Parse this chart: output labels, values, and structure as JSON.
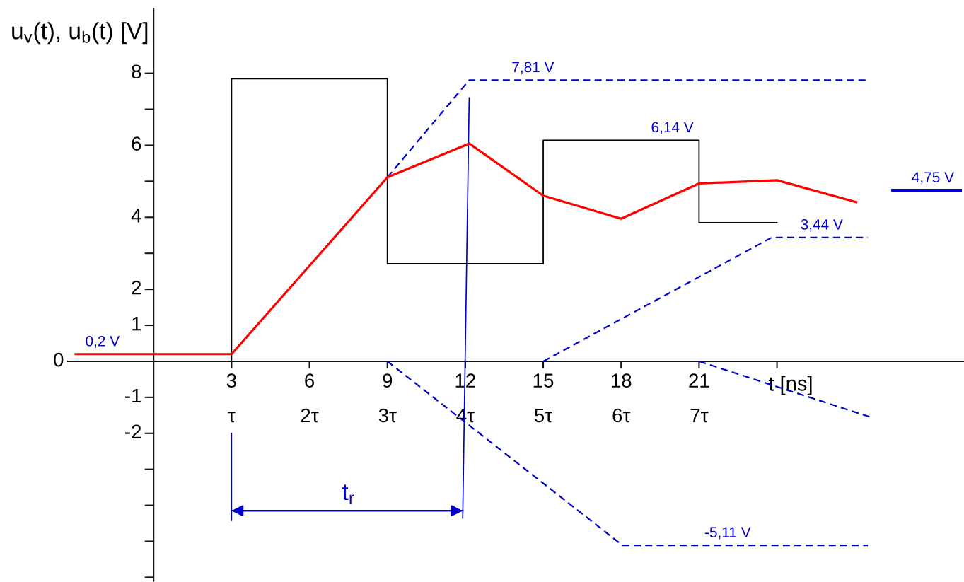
{
  "chart_data": {
    "type": "line",
    "ylabel": "u$_{v}$(t), u$_{b}$(t) [V]",
    "xlabel": "t [ns]",
    "xlim": [
      -3.3,
      31.2
    ],
    "ylim": [
      -6.1,
      9.8
    ],
    "xticks": [
      3,
      6,
      9,
      12,
      15,
      18,
      21,
      {
        "value": 24,
        "label": null
      }
    ],
    "x2lim": [
      -1.1,
      10.4
    ],
    "x2ticks": [
      {
        "value": 1,
        "label": "τ"
      },
      {
        "value": 2,
        "label": "2τ"
      },
      {
        "value": 3,
        "label": "3τ"
      },
      {
        "value": 4,
        "label": "4τ"
      },
      {
        "value": 5,
        "label": "5τ"
      },
      {
        "value": 6,
        "label": "6τ"
      },
      {
        "value": 7,
        "label": "7τ"
      }
    ],
    "yticks": [
      {
        "value": -6,
        "label": null
      },
      {
        "value": -5,
        "label": null
      },
      {
        "value": -4,
        "label": null
      },
      {
        "value": -3,
        "label": null
      },
      -2,
      -1,
      1,
      2,
      {
        "value": 3,
        "label": null
      },
      4,
      {
        "value": 5,
        "label": null
      },
      6,
      {
        "value": 7,
        "label": null
      },
      8
    ],
    "line_style": "solid",
    "series": [
      {
        "color": "#ff0000",
        "x": [
          -3,
          3,
          9,
          12.15,
          15,
          18,
          21,
          24,
          27.05
        ],
        "values": [
          0.2,
          0.2,
          5.11,
          6.05,
          4.6,
          3.96,
          4.94,
          5.03,
          4.42
        ]
      },
      {
        "color": "#000000",
        "x": [
          3,
          3,
          9,
          9,
          15,
          15,
          21,
          21,
          24
        ],
        "values": [
          0,
          7.85,
          7.85,
          2.71,
          2.71,
          6.14,
          6.14,
          3.85,
          3.85
        ]
      },
      {
        "color": "#0000cc",
        "line_style": "dashed",
        "x": [
          9,
          12.15,
          27.5
        ],
        "values": [
          5.11,
          7.81,
          7.81
        ]
      },
      {
        "color": "#0000cc",
        "line_style": "dashed",
        "x": [
          9,
          18.05,
          27.5
        ],
        "values": [
          0,
          -5.11,
          -5.11
        ]
      },
      {
        "color": "#0000cc",
        "line_style": "dashed",
        "x": [
          15,
          23.8,
          27.5
        ],
        "values": [
          0,
          3.44,
          3.44
        ]
      },
      {
        "color": "#0000cc",
        "line_style": "dashed",
        "x": [
          21,
          27.6
        ],
        "values": [
          0,
          -1.55
        ]
      },
      {
        "color": "#0000cc",
        "x": [
          12.15,
          11.9
        ],
        "values": [
          7.32,
          -4.35
        ]
      },
      {
        "color": "#0000cc",
        "x": [
          3,
          3
        ],
        "values": [
          -2.0,
          -4.42
        ]
      },
      {
        "color": "#0000cc",
        "x": [
          3,
          11.9
        ],
        "values": [
          -4.15,
          -4.15
        ]
      },
      {
        "color": "#0000cc",
        "x": [
          28.46,
          31.06
        ],
        "values": [
          4.75,
          4.75
        ]
      }
    ],
    "annotations": [
      "0",
      {
        "text": "0,2 V",
        "x": -1.97,
        "y": 0.2
      },
      {
        "text": "7,81 V",
        "x": 14.6,
        "y": 7.81
      },
      {
        "text": "6,14 V",
        "x": 19.97,
        "y": 6.14
      },
      {
        "text": "3,44 V",
        "x": 25.72,
        "y": 3.44
      },
      {
        "text": "-5,11 V",
        "x": 22.1,
        "y": -5.11
      },
      {
        "text": "4,75 V",
        "x": 30.0,
        "y": 4.75
      },
      {
        "text": "t$_{r}$",
        "x": 7.5,
        "y": -4.15
      }
    ]
  }
}
